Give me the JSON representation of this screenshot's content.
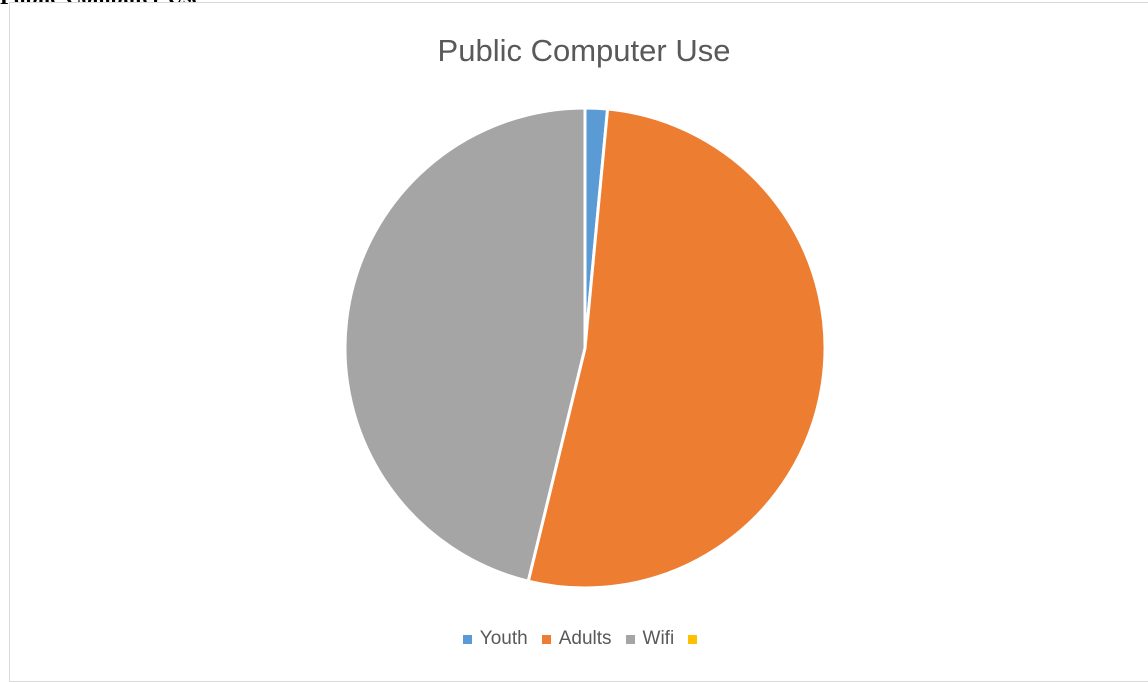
{
  "document": {
    "heading": "Public Computer Use"
  },
  "chart_data": {
    "type": "pie",
    "title": "Public Computer Use",
    "categories": [
      "Youth",
      "Adults",
      "Wifi",
      ""
    ],
    "values": [
      1.5,
      52.3,
      46.2,
      0
    ],
    "colors": [
      "#5b9bd5",
      "#ed7d31",
      "#a5a5a5",
      "#ffc000"
    ],
    "legend": "bottom"
  }
}
